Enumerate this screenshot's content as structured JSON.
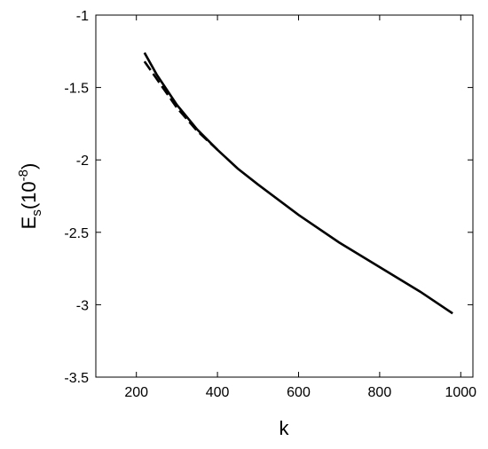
{
  "chart_data": {
    "type": "line",
    "xlabel": "k",
    "ylabel": {
      "main": "E",
      "sub": "s",
      "open": "(10",
      "sup": "-8",
      "close": ")"
    },
    "xlim": [
      100,
      1030
    ],
    "xticks": [
      200,
      400,
      600,
      800,
      1000
    ],
    "ylim": [
      -3.5,
      -1
    ],
    "yticks": [
      -3.5,
      -3,
      -2.5,
      -2,
      -1.5,
      -1
    ],
    "series": [
      {
        "color": "#000000",
        "style": "solid",
        "x": [
          220,
          250,
          300,
          350,
          400,
          450,
          500,
          600,
          700,
          800,
          900,
          980
        ],
        "values": [
          -1.26,
          -1.41,
          -1.62,
          -1.79,
          -1.93,
          -2.06,
          -2.17,
          -2.38,
          -2.57,
          -2.74,
          -2.91,
          -3.06
        ]
      },
      {
        "color": "#000000",
        "style": "dashed",
        "x": [
          220,
          250,
          300,
          350,
          400
        ],
        "values": [
          -1.32,
          -1.44,
          -1.64,
          -1.8,
          -1.93
        ]
      }
    ]
  }
}
